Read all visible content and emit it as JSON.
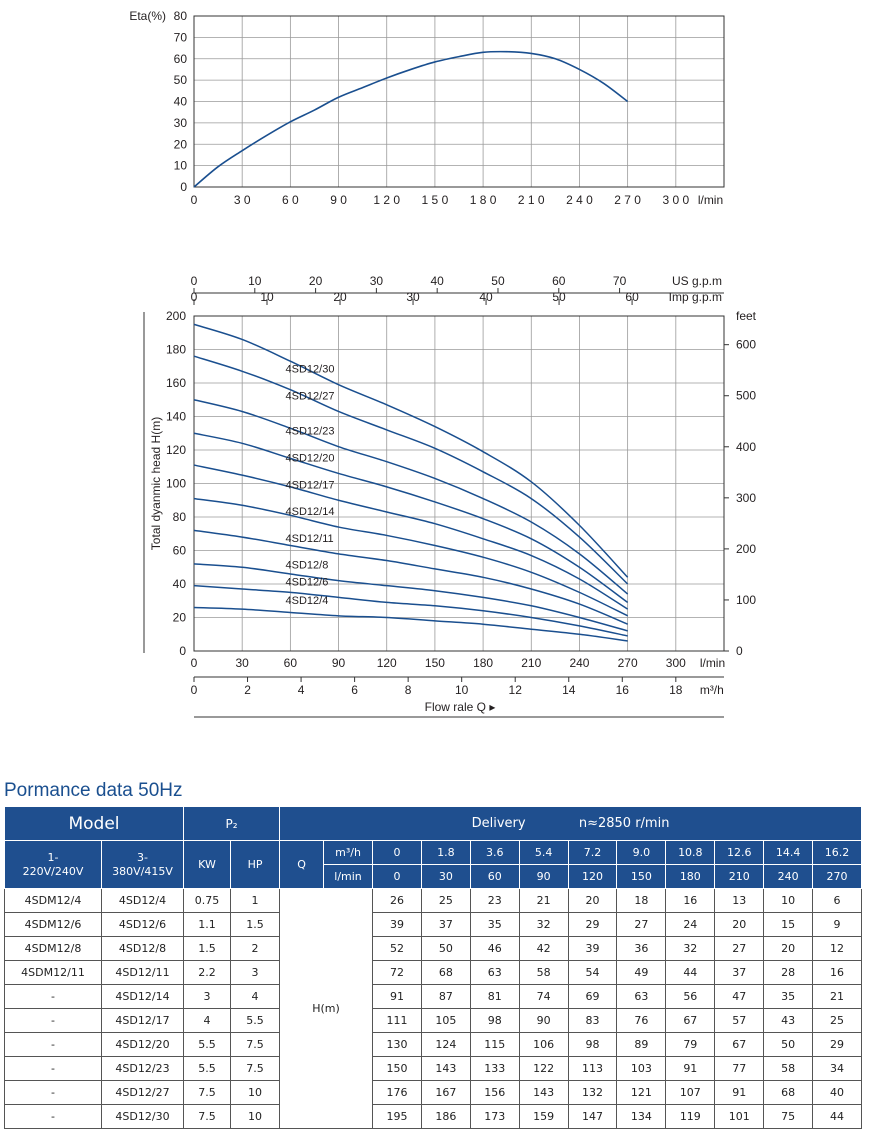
{
  "chart_data": [
    {
      "type": "line",
      "ylabel": "Eta(%)",
      "xunit": "l/min",
      "ylim": [
        0,
        80
      ],
      "xlim": [
        0,
        330
      ],
      "grid": true,
      "x_ticks": [
        0,
        30,
        60,
        90,
        120,
        150,
        180,
        210,
        240,
        270,
        300
      ],
      "x_tick_labels": [
        "0",
        "3 0",
        "6 0",
        "9 0",
        "1 2 0",
        "1 5 0",
        "1 8 0",
        "2 1 0",
        "2 4 0",
        "2 7 0",
        "3 0 0"
      ],
      "y_ticks": [
        0,
        10,
        20,
        30,
        40,
        50,
        60,
        70,
        80
      ],
      "series": [
        {
          "x": [
            0,
            15,
            30,
            45,
            60,
            75,
            90,
            105,
            120,
            135,
            150,
            165,
            180,
            195,
            210,
            225,
            240,
            255,
            270
          ],
          "y": [
            0,
            9.5,
            17,
            24,
            30.5,
            36,
            42,
            46.5,
            51,
            55,
            58.5,
            61,
            63,
            63.3,
            62.5,
            60,
            55,
            48.5,
            40
          ]
        }
      ],
      "color": "#1a4f8f"
    },
    {
      "type": "line",
      "ylabel": "Total dyanmic head H(m)",
      "xlabel": "Flow rale Q",
      "xunit": "l/min",
      "ylim": [
        0,
        200
      ],
      "xlim": [
        0,
        330
      ],
      "grid": true,
      "x_ticks": [
        0,
        30,
        60,
        90,
        120,
        150,
        180,
        210,
        240,
        270,
        300
      ],
      "y_ticks": [
        0,
        20,
        40,
        60,
        80,
        100,
        120,
        140,
        160,
        180,
        200
      ],
      "top_axis_us": {
        "unit": "US g.p.m",
        "ticks": [
          0,
          10,
          20,
          30,
          40,
          50,
          60,
          70
        ]
      },
      "top_axis_imp": {
        "unit": "Imp g.p.m",
        "ticks": [
          0,
          10,
          20,
          30,
          40,
          50,
          60
        ]
      },
      "right_axis": {
        "unit": "feet",
        "ticks": [
          0,
          100,
          200,
          300,
          400,
          500,
          600
        ]
      },
      "bottom_axis_m3h": {
        "unit": "m³/h",
        "ticks": [
          0,
          2,
          4,
          6,
          8,
          10,
          12,
          14,
          16,
          18
        ]
      },
      "x": [
        0,
        30,
        60,
        90,
        120,
        150,
        180,
        210,
        240,
        270
      ],
      "series": [
        {
          "name": "4SD12/30",
          "values": [
            195,
            186,
            173,
            159,
            147,
            134,
            119,
            101,
            75,
            44
          ]
        },
        {
          "name": "4SD12/27",
          "values": [
            176,
            167,
            156,
            143,
            132,
            121,
            107,
            91,
            68,
            40
          ]
        },
        {
          "name": "4SD12/23",
          "values": [
            150,
            143,
            133,
            122,
            113,
            103,
            91,
            77,
            58,
            34
          ]
        },
        {
          "name": "4SD12/20",
          "values": [
            130,
            124,
            115,
            106,
            98,
            89,
            79,
            67,
            50,
            29
          ]
        },
        {
          "name": "4SD12/17",
          "values": [
            111,
            105,
            98,
            90,
            83,
            76,
            67,
            57,
            43,
            25
          ]
        },
        {
          "name": "4SD12/14",
          "values": [
            91,
            87,
            81,
            74,
            69,
            63,
            56,
            47,
            35,
            21
          ]
        },
        {
          "name": "4SD12/11",
          "values": [
            72,
            68,
            63,
            58,
            54,
            49,
            44,
            37,
            28,
            16
          ]
        },
        {
          "name": "4SD12/8",
          "values": [
            52,
            50,
            46,
            42,
            39,
            36,
            32,
            27,
            20,
            12
          ]
        },
        {
          "name": "4SD12/6",
          "values": [
            39,
            37,
            35,
            32,
            29,
            27,
            24,
            20,
            15,
            9
          ]
        },
        {
          "name": "4SD12/4",
          "values": [
            26,
            25,
            23,
            21,
            20,
            18,
            16,
            13,
            10,
            6
          ]
        }
      ],
      "color": "#1a4f8f"
    }
  ],
  "table": {
    "title": "Pormance data 50Hz",
    "header": {
      "model": "Model",
      "p2": "P₂",
      "delivery": "Delivery",
      "speed": "n≈2850 r/min",
      "col_1ph": "1-\n220V/240V",
      "col_3ph": "3-\n380V/415V",
      "kw": "KW",
      "hp": "HP",
      "q": "Q",
      "m3h_label": "m³/h",
      "lmin_label": "l/min",
      "h_label": "H(m)"
    },
    "m3h": [
      "0",
      "1.8",
      "3.6",
      "5.4",
      "7.2",
      "9.0",
      "10.8",
      "12.6",
      "14.4",
      "16.2"
    ],
    "lmin": [
      "0",
      "30",
      "60",
      "90",
      "120",
      "150",
      "180",
      "210",
      "240",
      "270"
    ],
    "rows": [
      {
        "m1": "4SDM12/4",
        "m3": "4SD12/4",
        "kw": "0.75",
        "hp": "1",
        "h": [
          "26",
          "25",
          "23",
          "21",
          "20",
          "18",
          "16",
          "13",
          "10",
          "6"
        ]
      },
      {
        "m1": "4SDM12/6",
        "m3": "4SD12/6",
        "kw": "1.1",
        "hp": "1.5",
        "h": [
          "39",
          "37",
          "35",
          "32",
          "29",
          "27",
          "24",
          "20",
          "15",
          "9"
        ]
      },
      {
        "m1": "4SDM12/8",
        "m3": "4SD12/8",
        "kw": "1.5",
        "hp": "2",
        "h": [
          "52",
          "50",
          "46",
          "42",
          "39",
          "36",
          "32",
          "27",
          "20",
          "12"
        ]
      },
      {
        "m1": "4SDM12/11",
        "m3": "4SD12/11",
        "kw": "2.2",
        "hp": "3",
        "h": [
          "72",
          "68",
          "63",
          "58",
          "54",
          "49",
          "44",
          "37",
          "28",
          "16"
        ]
      },
      {
        "m1": "-",
        "m3": "4SD12/14",
        "kw": "3",
        "hp": "4",
        "h": [
          "91",
          "87",
          "81",
          "74",
          "69",
          "63",
          "56",
          "47",
          "35",
          "21"
        ]
      },
      {
        "m1": "-",
        "m3": "4SD12/17",
        "kw": "4",
        "hp": "5.5",
        "h": [
          "111",
          "105",
          "98",
          "90",
          "83",
          "76",
          "67",
          "57",
          "43",
          "25"
        ]
      },
      {
        "m1": "-",
        "m3": "4SD12/20",
        "kw": "5.5",
        "hp": "7.5",
        "h": [
          "130",
          "124",
          "115",
          "106",
          "98",
          "89",
          "79",
          "67",
          "50",
          "29"
        ]
      },
      {
        "m1": "-",
        "m3": "4SD12/23",
        "kw": "5.5",
        "hp": "7.5",
        "h": [
          "150",
          "143",
          "133",
          "122",
          "113",
          "103",
          "91",
          "77",
          "58",
          "34"
        ]
      },
      {
        "m1": "-",
        "m3": "4SD12/27",
        "kw": "7.5",
        "hp": "10",
        "h": [
          "176",
          "167",
          "156",
          "143",
          "132",
          "121",
          "107",
          "91",
          "68",
          "40"
        ]
      },
      {
        "m1": "-",
        "m3": "4SD12/30",
        "kw": "7.5",
        "hp": "10",
        "h": [
          "195",
          "186",
          "173",
          "159",
          "147",
          "134",
          "119",
          "101",
          "75",
          "44"
        ]
      }
    ]
  }
}
